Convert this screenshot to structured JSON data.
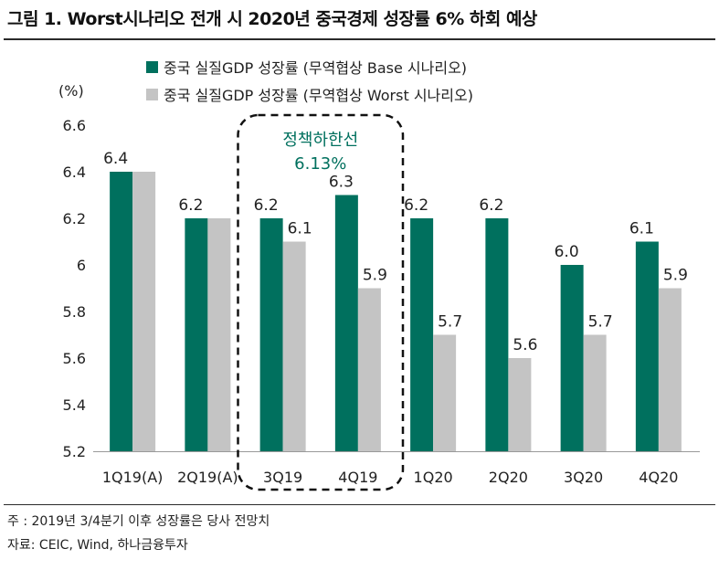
{
  "figure": {
    "title": "그림 1. Worst시나리오 전개 시 2020년 중국경제 성장률 6% 하회 예상",
    "unit": "(%)",
    "annotation": {
      "line1": "정책하한선",
      "line2": "6.13%"
    },
    "notes": [
      "주 : 2019년 3/4분기 이후 성장률은 당사 전망치",
      "자료: CEIC, Wind, 하나금융투자"
    ]
  },
  "chart_data": {
    "type": "bar",
    "categories": [
      "1Q19(A)",
      "2Q19(A)",
      "3Q19",
      "4Q19",
      "1Q20",
      "2Q20",
      "3Q20",
      "4Q20"
    ],
    "series": [
      {
        "name": "중국 실질GDP 성장률 (무역협상 Base 시나리오)",
        "color": "#00705e",
        "values": [
          6.4,
          6.2,
          6.2,
          6.3,
          6.2,
          6.2,
          6.0,
          6.1
        ],
        "labels": [
          "6.4",
          "6.2",
          "6.2",
          "6.3",
          "6.2",
          "6.2",
          "6.0",
          "6.1"
        ]
      },
      {
        "name": "중국 실질GDP 성장률 (무역협상 Worst 시나리오)",
        "color": "#c4c4c4",
        "values": [
          6.4,
          6.2,
          6.1,
          5.9,
          5.7,
          5.6,
          5.7,
          5.9
        ],
        "labels": [
          "",
          "",
          "6.1",
          "5.9",
          "5.7",
          "5.6",
          "5.7",
          "5.9"
        ]
      }
    ],
    "ylim": [
      5.2,
      6.6
    ],
    "yticks": [
      {
        "value": 5.2,
        "label": "5.2"
      },
      {
        "value": 5.4,
        "label": "5.4"
      },
      {
        "value": 5.6,
        "label": "5.6"
      },
      {
        "value": 5.8,
        "label": "5.8"
      },
      {
        "value": 6.0,
        "label": "6"
      },
      {
        "value": 6.2,
        "label": "6.2"
      },
      {
        "value": 6.4,
        "label": "6.4"
      },
      {
        "value": 6.6,
        "label": "6.6"
      }
    ],
    "grid": false,
    "legend": "top"
  }
}
